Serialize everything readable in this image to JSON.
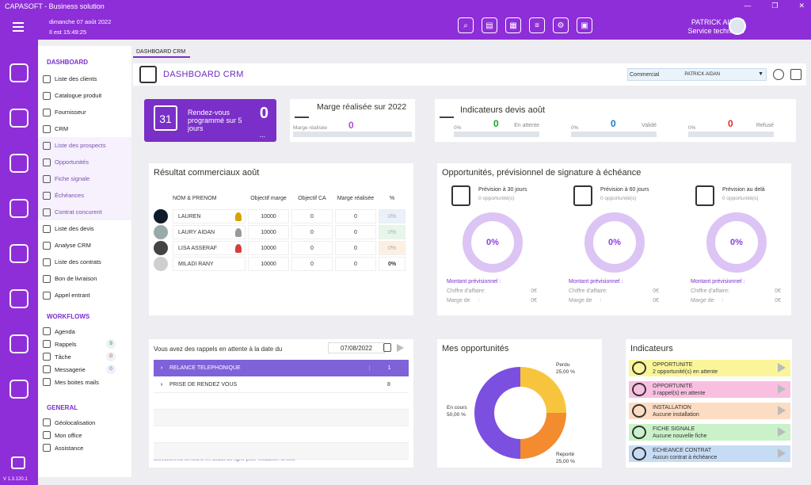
{
  "app": {
    "title": "CAPASOFT - Business solution",
    "version": "V 1.3.120.1"
  },
  "topbar": {
    "date": "dimanche 07 août 2022",
    "time": "Il est 15:49:25",
    "user_name": "PATRICK AIDAN",
    "user_role": "Service technique"
  },
  "menu": {
    "dashboard_title": "DASHBOARD",
    "dashboard_items": [
      {
        "label": "Liste des clients"
      },
      {
        "label": "Catalogue produit"
      },
      {
        "label": "Fournisseur"
      },
      {
        "label": "CRM"
      },
      {
        "label": "Liste des prospects"
      },
      {
        "label": "Opportunités"
      },
      {
        "label": "Fiche signale"
      },
      {
        "label": "Échéances"
      },
      {
        "label": "Contrat concurent"
      },
      {
        "label": "Liste des devis"
      },
      {
        "label": "Analyse CRM"
      },
      {
        "label": "Liste des contrats"
      },
      {
        "label": "Bon de livraison"
      },
      {
        "label": "Appel entrant"
      }
    ],
    "workflows_title": "WORKFLOWS",
    "workflow_items": [
      {
        "label": "Agenda",
        "count": ""
      },
      {
        "label": "Rappels",
        "count": "9"
      },
      {
        "label": "Tâche",
        "count": "0"
      },
      {
        "label": "Messagerie",
        "count": "0"
      },
      {
        "label": "Mes boites mails",
        "count": ""
      }
    ],
    "general_title": "GENERAL",
    "general_items": [
      {
        "label": "Géolocalisation"
      },
      {
        "label": "Mon office"
      },
      {
        "label": "Assistance"
      }
    ]
  },
  "tab": "DASHBOARD CRM",
  "header": {
    "title": "DASHBOARD CRM",
    "select_label": "Commercial",
    "select_value": "PATRICK AIDAN"
  },
  "rdv": {
    "text": "Rendez-vous programmé sur 5 jours",
    "cal": "31",
    "value": "0",
    "more": "..."
  },
  "marge": {
    "title": "Marge réalisée sur 2022",
    "sub": "Marge réalisée",
    "value": "0"
  },
  "devis": {
    "title": "Indicateurs devis août",
    "items": [
      {
        "pct": "0%",
        "value": "0",
        "label": "En attente",
        "color": "#1aa31a"
      },
      {
        "pct": "0%",
        "value": "0",
        "label": "Validé",
        "color": "#1a7ac8"
      },
      {
        "pct": "0%",
        "value": "0",
        "label": "Refusé",
        "color": "#e02a2a"
      }
    ]
  },
  "resultats": {
    "title": "Résultat commerciaux août",
    "headers": [
      "NOM & PRENOM",
      "Objectif marge",
      "Objectif CA",
      "Marge réalisée",
      "%"
    ],
    "rows": [
      {
        "name": "LAUREN",
        "obj_marge": "10000",
        "obj_ca": "0",
        "marge": "0",
        "pct": "0%",
        "pct_bg": "#e9f1fb",
        "medal": "#d8a200"
      },
      {
        "name": "LAURY AIDAN",
        "obj_marge": "10000",
        "obj_ca": "0",
        "marge": "0",
        "pct": "0%",
        "pct_bg": "#e6f7ea",
        "medal": "#999999"
      },
      {
        "name": "LISA ASSERAF",
        "obj_marge": "10000",
        "obj_ca": "0",
        "marge": "0",
        "pct": "0%",
        "pct_bg": "#fdf0e3",
        "medal": "#d04040"
      },
      {
        "name": "MILADI RANY",
        "obj_marge": "10000",
        "obj_ca": "0",
        "marge": "0",
        "pct": "0%",
        "pct_bg": "#ffffff",
        "medal": ""
      }
    ]
  },
  "opp_sig": {
    "title": "Opportunités, prévisionnel de signature à échéance",
    "cols": [
      {
        "title": "Prévision à 30 jours",
        "sub": "0 opportunité(s)",
        "pct": "0%",
        "montant": "Montant prévisionnel :",
        "ca_label": "Chiffre d'affaire:",
        "ca": "0€",
        "marge_label": "Marge de",
        "marge_sep": ":",
        "marge": "0€"
      },
      {
        "title": "Prévision à 60 jours",
        "sub": "0 opportunité(s)",
        "pct": "0%",
        "montant": "Montant prévisionnel :",
        "ca_label": "Chiffre d'affaire:",
        "ca": "0€",
        "marge_label": "Marge de",
        "marge_sep": ":",
        "marge": "0€"
      },
      {
        "title": "Prévision au delà",
        "sub": "0 opportunité(s)",
        "pct": "0%",
        "montant": "Montant prévisionnel :",
        "ca_label": "Chiffre d'affaire:",
        "ca": "0€",
        "marge_label": "Marge de",
        "marge_sep": ":",
        "marge": "0€"
      }
    ]
  },
  "rappels": {
    "title": "Vous avez des rappels en attente à la date du",
    "date": "07/08/2022",
    "rows": [
      {
        "label": "RELANCE TELEPHONIQUE",
        "count": "1"
      },
      {
        "label": "PRISE DE RENDEZ VOUS",
        "count": "8"
      }
    ],
    "hint": "Sélectionnez la flèche en début de ligne pour visualiser la liste"
  },
  "mes_opp": {
    "title": "Mes opportunités"
  },
  "chart_data": {
    "type": "pie",
    "categories": [
      "En cours",
      "Perdu",
      "Reporté"
    ],
    "values": [
      50.0,
      25.0,
      25.0
    ],
    "labels": [
      "50,00 %",
      "25,00 %",
      "25,00 %"
    ],
    "colors": [
      "#7b4fe0",
      "#f7c53d",
      "#f38b2f"
    ]
  },
  "indicateurs": {
    "title": "Indicateurs",
    "items": [
      {
        "title": "OPPORTUNITE",
        "sub": "2 opportunité(s) en attente",
        "bg": "#fbf59a"
      },
      {
        "title": "OPPORTUNITE",
        "sub": "3 rappel(s) en attente",
        "bg": "#f8bfe0"
      },
      {
        "title": "INSTALLATION",
        "sub": "Aucune installation",
        "bg": "#fcdcc2"
      },
      {
        "title": "FICHE SIGNALE",
        "sub": "Aucune nouvelle fiche",
        "bg": "#c9f2c9"
      },
      {
        "title": "ECHEANCE CONTRAT",
        "sub": "Aucun contrat à échéance",
        "bg": "#c6dcf4"
      }
    ]
  }
}
